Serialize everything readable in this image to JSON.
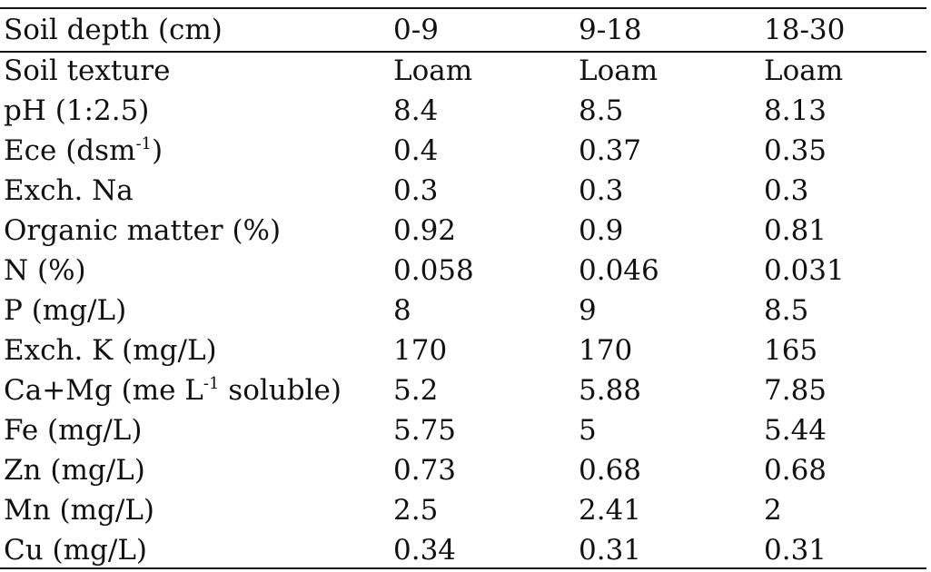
{
  "header": [
    "Soil depth (cm)",
    "0-9",
    "9-18",
    "18-30"
  ],
  "rows": [
    {
      "label": "Soil texture",
      "values": [
        "Loam",
        "Loam",
        "Loam"
      ]
    },
    {
      "label": "pH (1:2.5)",
      "values": [
        "8.4",
        "8.5",
        "8.13"
      ]
    },
    {
      "label_pre": "Ece (dsm",
      "label_sup": "-1",
      "label_post": ")",
      "values": [
        "0.4",
        "0.37",
        "0.35"
      ]
    },
    {
      "label": "Exch. Na",
      "values": [
        "0.3",
        "0.3",
        "0.3"
      ]
    },
    {
      "label": "Organic matter (%)",
      "values": [
        "0.92",
        "0.9",
        "0.81"
      ]
    },
    {
      "label": "N (%)",
      "values": [
        "0.058",
        "0.046",
        "0.031"
      ]
    },
    {
      "label": "P (mg/L)",
      "values": [
        "8",
        "9",
        "8.5"
      ]
    },
    {
      "label": "Exch. K (mg/L)",
      "values": [
        "170",
        "170",
        "165"
      ]
    },
    {
      "label_pre": "Ca+Mg (me L",
      "label_sup": "-1",
      "label_post": " soluble)",
      "values": [
        "5.2",
        "5.88",
        "7.85"
      ]
    },
    {
      "label": "Fe (mg/L)",
      "values": [
        "5.75",
        "5",
        "5.44"
      ]
    },
    {
      "label": "Zn (mg/L)",
      "values": [
        "0.73",
        "0.68",
        "0.68"
      ]
    },
    {
      "label": "Mn (mg/L)",
      "values": [
        "2.5",
        "2.41",
        "2"
      ]
    },
    {
      "label": "Cu (mg/L)",
      "values": [
        "0.34",
        "0.31",
        "0.31"
      ]
    }
  ]
}
